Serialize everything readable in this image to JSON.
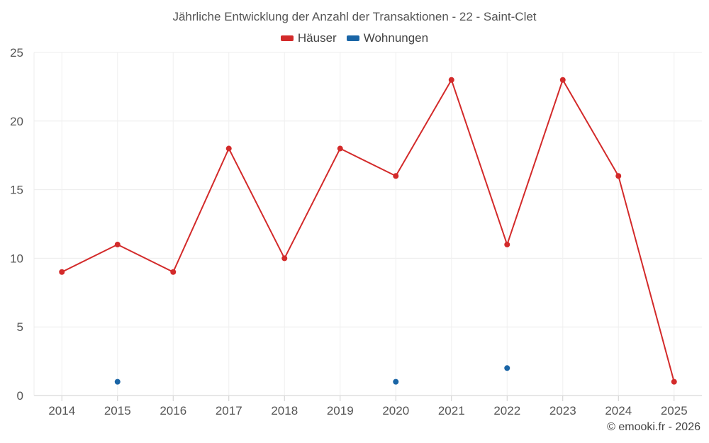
{
  "chart_data": {
    "type": "line",
    "title": "Jährliche Entwicklung der Anzahl der Transaktionen - 22 - Saint-Clet",
    "categories": [
      "2014",
      "2015",
      "2016",
      "2017",
      "2018",
      "2019",
      "2020",
      "2021",
      "2022",
      "2023",
      "2024",
      "2025"
    ],
    "y_ticks": [
      0,
      5,
      10,
      15,
      20,
      25
    ],
    "ylim": [
      0,
      25
    ],
    "grid": true,
    "legend_position": "top-center",
    "series": [
      {
        "name": "Häuser",
        "color": "#d32a2a",
        "line": true,
        "values": [
          9,
          11,
          9,
          18,
          10,
          18,
          16,
          23,
          11,
          23,
          16,
          1
        ]
      },
      {
        "name": "Wohnungen",
        "color": "#1a65a6",
        "line": false,
        "values": [
          null,
          1,
          null,
          null,
          null,
          null,
          1,
          null,
          2,
          null,
          null,
          null
        ]
      }
    ]
  },
  "credit": "© emooki.fr - 2026"
}
